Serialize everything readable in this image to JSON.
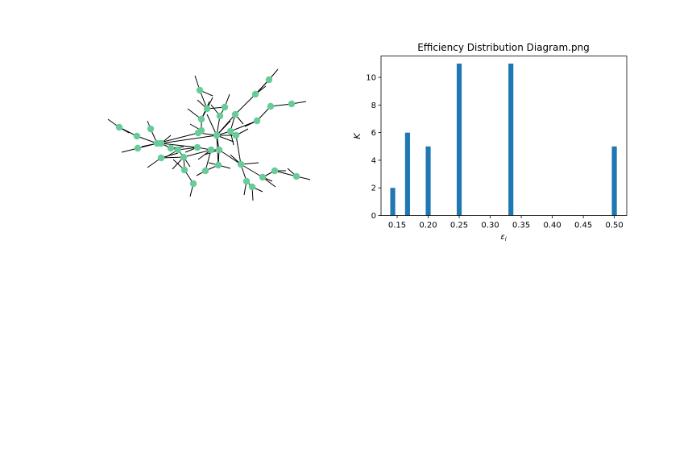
{
  "figure": {
    "background": "#ffffff"
  },
  "network": {
    "node_color": "#66cc99",
    "edge_color": "#000000"
  },
  "chart_data": {
    "type": "bar",
    "title": "Efficiency Distribution Diagram.png",
    "xlabel": "ε_l",
    "ylabel": "K",
    "bar_color": "#1f77b4",
    "x": [
      0.1429,
      0.1667,
      0.2,
      0.25,
      0.3333,
      0.5
    ],
    "values": [
      2,
      6,
      5,
      11,
      11,
      5
    ],
    "bar_width": 0.008,
    "xlim": [
      0.124,
      0.52
    ],
    "ylim": [
      0,
      11.55
    ],
    "xticks": [
      "0.15",
      "0.20",
      "0.25",
      "0.30",
      "0.35",
      "0.40",
      "0.45",
      "0.50"
    ],
    "yticks": [
      "0",
      "2",
      "4",
      "6",
      "8",
      "10"
    ]
  }
}
